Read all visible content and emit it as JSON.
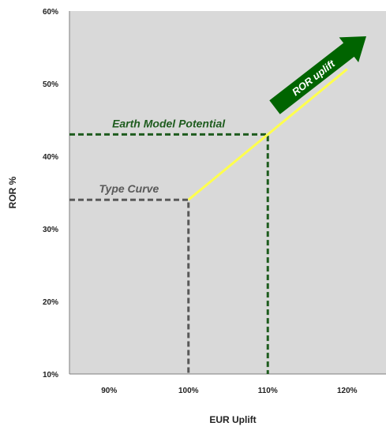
{
  "chart_data": {
    "type": "line",
    "title": "",
    "xlabel": "EUR Uplift",
    "ylabel": "ROR %",
    "xlim": [
      85,
      125
    ],
    "ylim": [
      10,
      60
    ],
    "x_ticks": [
      {
        "value": 90,
        "label": "90%"
      },
      {
        "value": 100,
        "label": "100%"
      },
      {
        "value": 110,
        "label": "110%"
      },
      {
        "value": 120,
        "label": "120%"
      }
    ],
    "y_ticks": [
      {
        "value": 10,
        "label": "10%"
      },
      {
        "value": 20,
        "label": "20%"
      },
      {
        "value": 30,
        "label": "30%"
      },
      {
        "value": 40,
        "label": "40%"
      },
      {
        "value": 50,
        "label": "50%"
      },
      {
        "value": 60,
        "label": "60%"
      }
    ],
    "grid": false,
    "plot_background": "#d9d9d9",
    "series": [
      {
        "color": "#ffff4d",
        "x": [
          100,
          120
        ],
        "y": [
          34,
          52
        ]
      }
    ],
    "reference_lines": [
      {
        "label": "Type Curve",
        "x": 100,
        "y": 34,
        "color": "#595959"
      },
      {
        "label": "Earth Model Potential",
        "x": 110,
        "y": 43,
        "color": "#1e5c1e"
      }
    ],
    "arrow": {
      "label": "ROR uplift",
      "color": "#006400",
      "text_color": "#ffffff"
    }
  }
}
